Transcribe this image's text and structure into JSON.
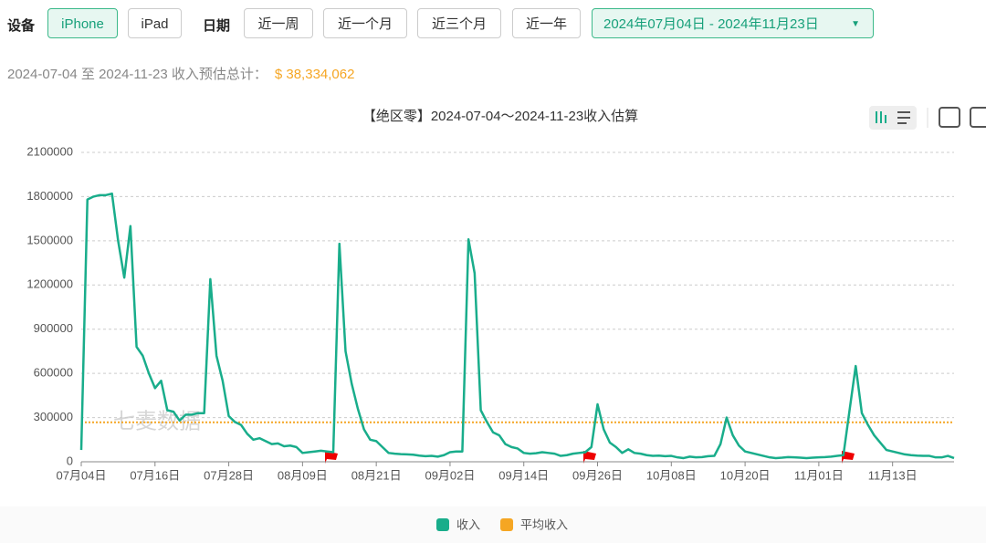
{
  "filters": {
    "device_label": "设备",
    "devices": [
      "iPhone",
      "iPad"
    ],
    "date_label": "日期",
    "ranges": [
      "近一周",
      "近一个月",
      "近三个月",
      "近一年"
    ],
    "date_range": "2024年07月04日 - 2024年11月23日"
  },
  "summary": {
    "text": "2024-07-04 至 2024-11-23 收入预估总计：",
    "total": "$ 38,334,062"
  },
  "chart_data": {
    "type": "line",
    "title": "【绝区零】2024-07-04～2024-11-23收入估算",
    "watermark": "七麦数据",
    "categories": [
      "07月04日",
      null,
      null,
      null,
      null,
      null,
      null,
      null,
      null,
      null,
      null,
      null,
      "07月16日",
      null,
      null,
      null,
      null,
      null,
      null,
      null,
      null,
      null,
      null,
      null,
      "07月28日",
      null,
      null,
      null,
      null,
      null,
      null,
      null,
      null,
      null,
      null,
      null,
      "08月09日",
      null,
      null,
      null,
      null,
      null,
      null,
      null,
      null,
      null,
      null,
      null,
      "08月21日",
      null,
      null,
      null,
      null,
      null,
      null,
      null,
      null,
      null,
      null,
      null,
      "09月02日",
      null,
      null,
      null,
      null,
      null,
      null,
      null,
      null,
      null,
      null,
      null,
      "09月14日",
      null,
      null,
      null,
      null,
      null,
      null,
      null,
      null,
      null,
      null,
      null,
      "09月26日",
      null,
      null,
      null,
      null,
      null,
      null,
      null,
      null,
      null,
      null,
      null,
      "10月08日",
      null,
      null,
      null,
      null,
      null,
      null,
      null,
      null,
      null,
      null,
      null,
      "10月20日",
      null,
      null,
      null,
      null,
      null,
      null,
      null,
      null,
      null,
      null,
      null,
      "11月01日",
      null,
      null,
      null,
      null,
      null,
      null,
      null,
      null,
      null,
      null,
      null,
      "11月13日",
      null,
      null,
      null,
      null,
      null,
      null,
      null,
      null,
      null,
      null
    ],
    "series": [
      {
        "name": "收入",
        "color": "#19ad8b",
        "values": [
          80000,
          1780000,
          1800000,
          1810000,
          1810000,
          1820000,
          1500000,
          1250000,
          1600000,
          780000,
          720000,
          600000,
          500000,
          550000,
          350000,
          340000,
          280000,
          320000,
          320000,
          330000,
          330000,
          1240000,
          720000,
          550000,
          310000,
          270000,
          250000,
          190000,
          150000,
          160000,
          140000,
          120000,
          125000,
          105000,
          110000,
          100000,
          60000,
          65000,
          70000,
          75000,
          70000,
          65000,
          1480000,
          750000,
          530000,
          360000,
          220000,
          150000,
          140000,
          100000,
          60000,
          55000,
          52000,
          50000,
          48000,
          42000,
          38000,
          40000,
          35000,
          45000,
          65000,
          70000,
          70000,
          1510000,
          1280000,
          350000,
          270000,
          200000,
          180000,
          120000,
          100000,
          90000,
          60000,
          55000,
          58000,
          65000,
          60000,
          55000,
          40000,
          45000,
          55000,
          60000,
          65000,
          100000,
          390000,
          220000,
          130000,
          100000,
          60000,
          85000,
          60000,
          55000,
          45000,
          40000,
          42000,
          38000,
          40000,
          30000,
          25000,
          35000,
          30000,
          32000,
          38000,
          40000,
          120000,
          300000,
          180000,
          110000,
          70000,
          60000,
          50000,
          40000,
          30000,
          25000,
          28000,
          32000,
          30000,
          28000,
          25000,
          28000,
          30000,
          32000,
          35000,
          40000,
          45000,
          350000,
          650000,
          330000,
          250000,
          180000,
          130000,
          80000,
          70000,
          60000,
          50000,
          45000,
          42000,
          40000,
          40000,
          30000,
          30000,
          40000,
          25000
        ]
      }
    ],
    "average": {
      "name": "平均收入",
      "color": "#f5a623",
      "value": 268070
    },
    "ylim": [
      0,
      2100000
    ],
    "yticks": [
      0,
      300000,
      600000,
      900000,
      1200000,
      1500000,
      1800000,
      2100000
    ],
    "grid": true,
    "legend": "bottom"
  }
}
